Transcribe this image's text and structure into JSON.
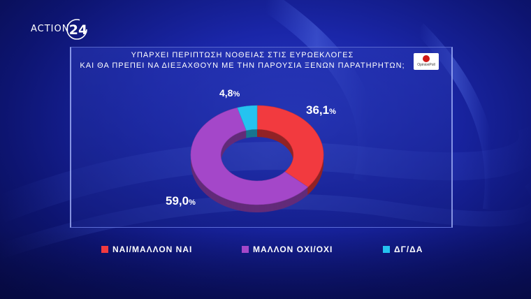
{
  "logo": {
    "text": "ACTION",
    "number": "24"
  },
  "poll_logo": {
    "text": "OpinionPoll"
  },
  "colors": {
    "red": "#f23a3f",
    "purple": "#a447c9",
    "cyan": "#25c3f0"
  },
  "chart_data": {
    "type": "pie",
    "title": "ΥΠΑΡΧΕΙ ΠΕΡΙΠΤΩΣΗ ΝΟΘΕΙΑΣ ΣΤΙΣ ΕΥΡΩΕΚΛΟΓΕΣ",
    "subtitle": "ΚΑΙ ΘΑ ΠΡΕΠΕΙ ΝΑ ΔΙΕΞΑΧΘΟΥΝ ΜΕ ΤΗΝ ΠΑΡΟΥΣΙΑ ΞΕΝΩΝ ΠΑΡΑΤΗΡΗΤΩΝ;",
    "donut": true,
    "legend_position": "bottom",
    "slices": [
      {
        "label": "ΝΑΙ/ΜΑΛΛΟΝ ΝΑΙ",
        "value": 36.1,
        "display": "36,1",
        "color": "#f23a3f"
      },
      {
        "label": "ΜΑΛΛΟΝ ΟΧΙ/ΟΧΙ",
        "value": 59.0,
        "display": "59,0",
        "color": "#a447c9"
      },
      {
        "label": "ΔΓ/ΔΑ",
        "value": 4.8,
        "display": "4,8",
        "color": "#25c3f0"
      }
    ],
    "unit": "%"
  }
}
